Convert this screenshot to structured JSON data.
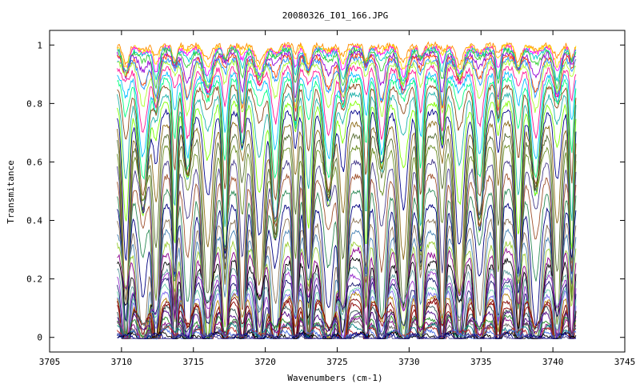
{
  "chart_data": {
    "type": "line",
    "title": "20080326_I01_166.JPG",
    "xlabel": "Wavenumbers (cm-1)",
    "ylabel": "Transmitance",
    "xlim": [
      3705,
      3745
    ],
    "ylim": [
      -0.05,
      1.05
    ],
    "x_ticks": [
      3705,
      3710,
      3715,
      3720,
      3725,
      3730,
      3735,
      3740,
      3745
    ],
    "y_ticks": [
      0,
      0.2,
      0.4,
      0.6,
      0.8,
      1
    ],
    "y_tick_labels": [
      "0",
      "0.2",
      "0.4",
      "0.6",
      "0.8",
      "1"
    ],
    "grid": false,
    "legend": "none",
    "x_range_of_data": [
      3709.7,
      3741.6
    ],
    "line_dip_centers": [
      3710.3,
      3711.5,
      3712.4,
      3713.7,
      3714.6,
      3716.0,
      3717.2,
      3718.4,
      3719.6,
      3720.7,
      3722.1,
      3723.0,
      3724.4,
      3725.4,
      3727.0,
      3728.1,
      3729.6,
      3730.8,
      3732.3,
      3733.5,
      3734.9,
      3736.2,
      3737.6,
      3738.8,
      3740.3,
      3741.3
    ],
    "series_baselines": [
      1.0,
      0.995,
      0.99,
      0.985,
      0.98,
      0.97,
      0.96,
      0.95,
      0.94,
      0.92,
      0.9,
      0.88,
      0.86,
      0.83,
      0.8,
      0.77,
      0.73,
      0.69,
      0.65,
      0.6,
      0.55,
      0.5,
      0.45,
      0.4,
      0.36,
      0.32,
      0.29,
      0.26,
      0.23,
      0.21,
      0.19,
      0.17,
      0.155,
      0.14,
      0.125,
      0.11,
      0.095,
      0.08,
      0.065,
      0.055,
      0.045,
      0.035,
      0.025,
      0.015,
      0.008,
      0.003,
      0.0
    ],
    "series_colors": [
      "#ff8c00",
      "#ffd700",
      "#ff00ff",
      "#00ced1",
      "#32cd32",
      "#9400d3",
      "#ff4500",
      "#1e90ff",
      "#adff2f",
      "#ff1493",
      "#00bfff",
      "#00ff7f",
      "#8b4513",
      "#20b2aa",
      "#7fff00",
      "#00008b",
      "#8b6914",
      "#556b2f",
      "#6b8e23",
      "#483d8b",
      "#a0522d",
      "#2e8b57",
      "#000080",
      "#8b7355",
      "#4682b4",
      "#9acd32",
      "#8b008b",
      "#000000",
      "#5f9ea0",
      "#9932cc",
      "#191970",
      "#66cdaa",
      "#7b68ee",
      "#b8860b",
      "#800000",
      "#8b0000",
      "#2f4f4f",
      "#4b0082",
      "#228b22",
      "#800080",
      "#696969",
      "#008080",
      "#b22222",
      "#4169e1",
      "#000000",
      "#00008b",
      "#483d8b"
    ]
  }
}
